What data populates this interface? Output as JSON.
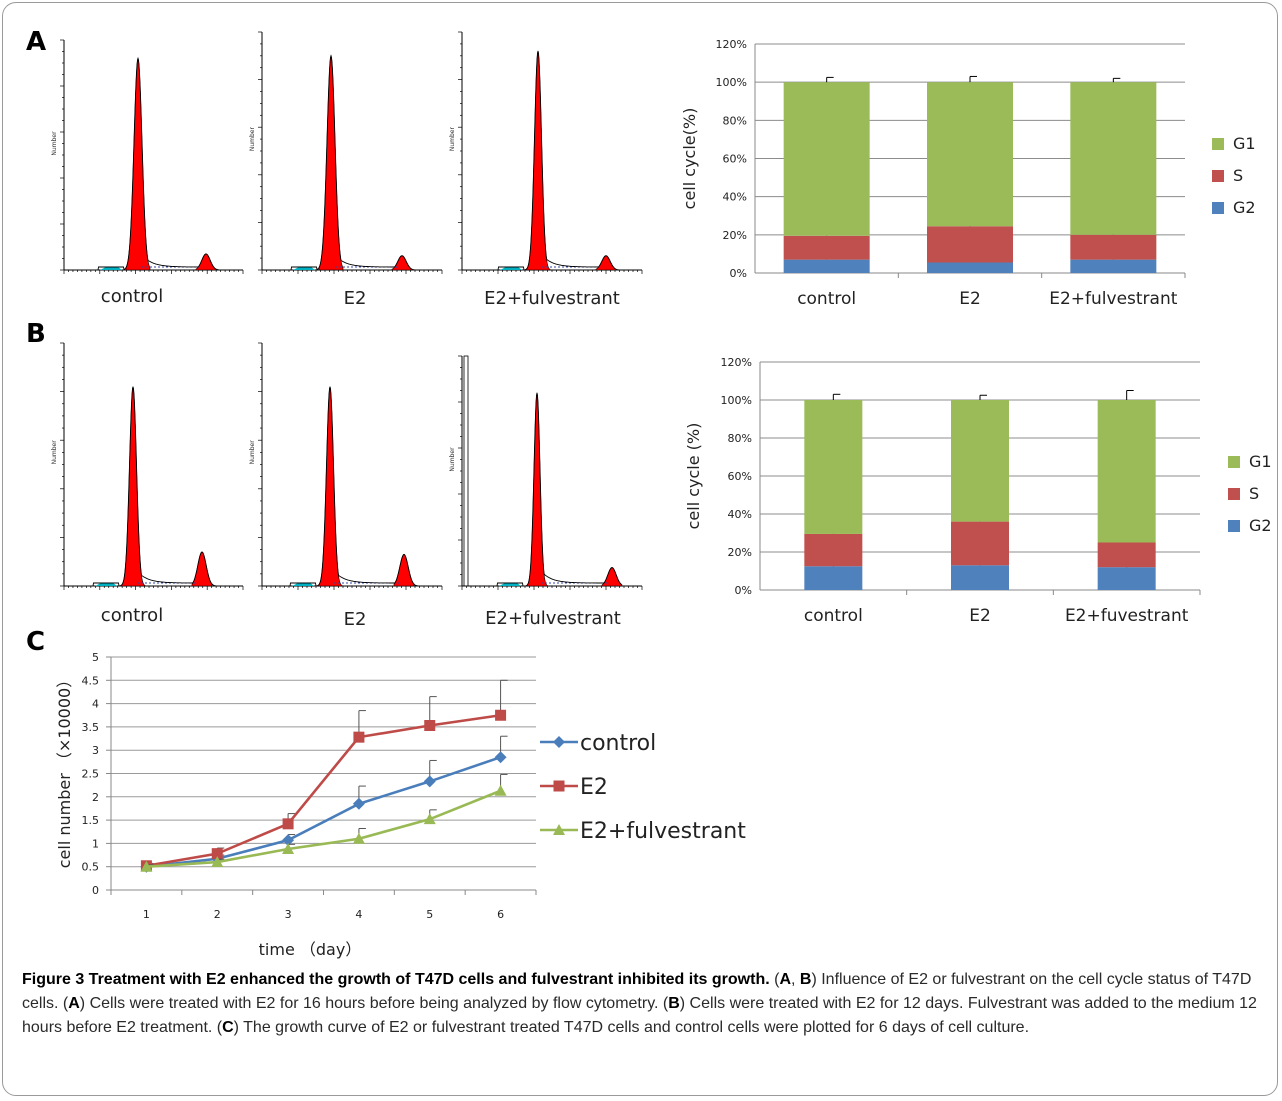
{
  "panels": {
    "a": "A",
    "b": "B",
    "c": "C"
  },
  "histograms": {
    "a": [
      {
        "label": "control",
        "ytitle": "Number"
      },
      {
        "label": "E2",
        "ytitle": "Number"
      },
      {
        "label": "E2+fulvestrant",
        "ytitle": "Number"
      }
    ],
    "b": [
      {
        "label": "control",
        "ytitle": "Number"
      },
      {
        "label": "E2",
        "ytitle": "Number"
      },
      {
        "label": "E2+fulvestrant",
        "ytitle": "Number"
      }
    ]
  },
  "chart_data": [
    {
      "id": "cycle-a",
      "type": "bar",
      "stacked": true,
      "categories": [
        "control",
        "E2",
        "E2+fulvestrant"
      ],
      "series": [
        {
          "name": "G2",
          "values": [
            7,
            5.5,
            7
          ],
          "error": [
            0.8,
            0.6,
            0.8
          ],
          "color": "#4f81bd"
        },
        {
          "name": "S",
          "values": [
            12.5,
            19,
            13
          ],
          "error": [
            1.2,
            2.5,
            1.2
          ],
          "color": "#c0504d"
        },
        {
          "name": "G1",
          "values": [
            80.5,
            75.5,
            80
          ],
          "error": [
            2.5,
            3,
            2
          ],
          "color": "#9bbb59"
        }
      ],
      "ylabel": "cell cycle(%)",
      "ylim": [
        0,
        120
      ],
      "yticks": [
        0,
        20,
        40,
        60,
        80,
        100,
        120
      ],
      "ytick_labels": [
        "0%",
        "20%",
        "40%",
        "60%",
        "80%",
        "100%",
        "120%"
      ],
      "grid": true,
      "legend": "right"
    },
    {
      "id": "cycle-b",
      "type": "bar",
      "stacked": true,
      "categories": [
        "control",
        "E2",
        "E2+fuvestrant"
      ],
      "series": [
        {
          "name": "G2",
          "values": [
            12.5,
            13,
            12
          ],
          "error": [
            0.8,
            0.8,
            0.8
          ],
          "color": "#4f81bd"
        },
        {
          "name": "S",
          "values": [
            17,
            23,
            13
          ],
          "error": [
            2,
            2,
            3
          ],
          "color": "#c0504d"
        },
        {
          "name": "G1",
          "values": [
            70.5,
            64,
            75
          ],
          "error": [
            3,
            2.5,
            5
          ],
          "color": "#9bbb59"
        }
      ],
      "ylabel": "cell cycle (%)",
      "ylim": [
        0,
        120
      ],
      "yticks": [
        0,
        20,
        40,
        60,
        80,
        100,
        120
      ],
      "ytick_labels": [
        "0%",
        "20%",
        "40%",
        "60%",
        "80%",
        "100%",
        "120%"
      ],
      "grid": true,
      "legend": "right"
    },
    {
      "id": "growth-c",
      "type": "line",
      "x": [
        1,
        2,
        3,
        4,
        5,
        6
      ],
      "xticks": [
        "1",
        "2",
        "3",
        "4",
        "5",
        "6"
      ],
      "series": [
        {
          "name": "control",
          "values": [
            0.5,
            0.67,
            1.07,
            1.85,
            2.33,
            2.85
          ],
          "error": [
            0.05,
            0.08,
            0.12,
            0.38,
            0.45,
            0.45
          ],
          "color": "#4a7ebb",
          "marker": "diamond"
        },
        {
          "name": "E2",
          "values": [
            0.52,
            0.78,
            1.42,
            3.28,
            3.53,
            3.75
          ],
          "error": [
            0.05,
            0.12,
            0.22,
            0.57,
            0.62,
            0.75
          ],
          "color": "#be4b48",
          "marker": "square"
        },
        {
          "name": "E2+fulvestrant",
          "values": [
            0.5,
            0.6,
            0.88,
            1.1,
            1.52,
            2.13
          ],
          "error": [
            0.04,
            0.06,
            0.1,
            0.22,
            0.2,
            0.35
          ],
          "color": "#98b954",
          "marker": "triangle"
        }
      ],
      "xlabel": "time （day）",
      "ylabel": "cell number （×10000）",
      "ylim": [
        0,
        5
      ],
      "yticks": [
        "0",
        "0.5",
        "1",
        "1.5",
        "2",
        "2.5",
        "3",
        "3.5",
        "4",
        "4.5",
        "5"
      ],
      "grid": true,
      "legend": "right"
    }
  ],
  "caption": {
    "title": "Figure 3 Treatment with E2 enhanced the growth of T47D cells and fulvestrant inhibited its growth.",
    "p1": " (",
    "p2": ", ",
    "p3": ") Influence of E2 or fulvestrant on the cell cycle status of T47D cells. (",
    "p4": ") Cells were treated with E2 for 16 hours before being analyzed by flow cytometry. (",
    "p5": ") Cells were treated with E2 for 12 days. Fulvestrant was added to the medium 12 hours before E2 treatment. (",
    "p6": ") The growth curve of E2 or fulvestrant treated T47D cells and control cells were plotted for 6 days of cell culture."
  }
}
